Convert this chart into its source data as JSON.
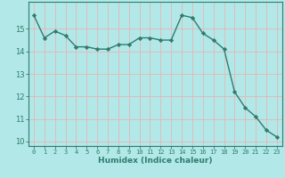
{
  "x": [
    0,
    1,
    2,
    3,
    4,
    5,
    6,
    7,
    8,
    9,
    10,
    11,
    12,
    13,
    14,
    15,
    16,
    17,
    18,
    19,
    20,
    21,
    22,
    23
  ],
  "y": [
    15.6,
    14.6,
    14.9,
    14.7,
    14.2,
    14.2,
    14.1,
    14.1,
    14.3,
    14.3,
    14.6,
    14.6,
    14.5,
    14.5,
    15.6,
    15.5,
    14.8,
    14.5,
    14.1,
    12.2,
    11.5,
    11.1,
    10.5,
    10.2
  ],
  "ylim": [
    9.8,
    16.2
  ],
  "xlim": [
    -0.5,
    23.5
  ],
  "yticks": [
    10,
    11,
    12,
    13,
    14,
    15
  ],
  "xticks": [
    0,
    1,
    2,
    3,
    4,
    5,
    6,
    7,
    8,
    9,
    10,
    11,
    12,
    13,
    14,
    15,
    16,
    17,
    18,
    19,
    20,
    21,
    22,
    23
  ],
  "xlabel": "Humidex (Indice chaleur)",
  "line_color": "#2e7d6e",
  "marker": "D",
  "marker_size": 2.2,
  "bg_color": "#b2e8e8",
  "grid_color": "#e8b4b4",
  "spine_color": "#2e7d6e",
  "tick_fontsize": 5.0,
  "xlabel_fontsize": 6.5
}
